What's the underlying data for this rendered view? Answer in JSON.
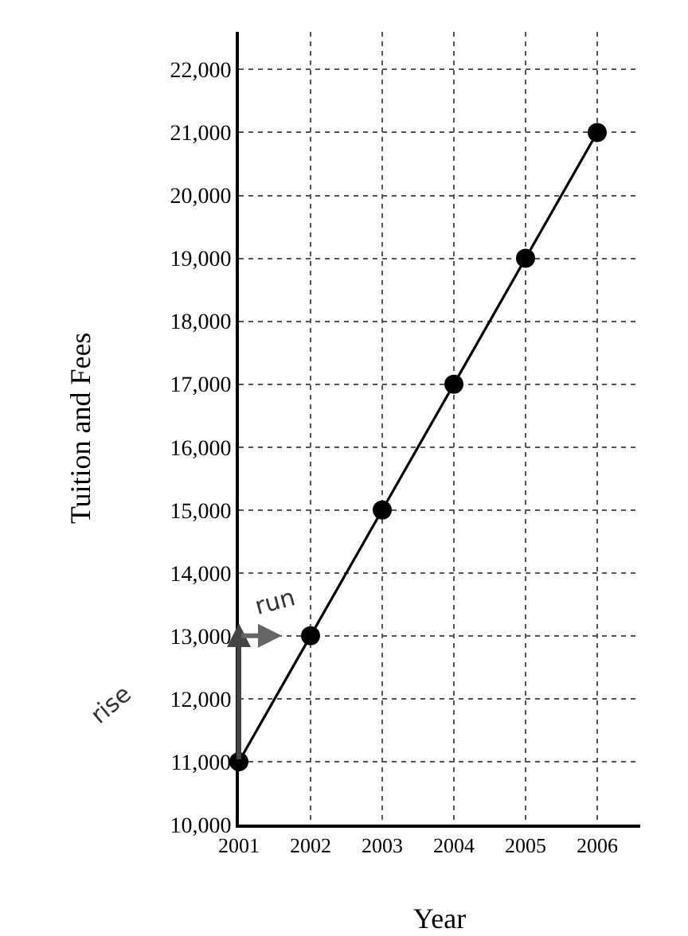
{
  "chart_data": {
    "type": "line",
    "xlabel": "Year",
    "ylabel": "Tuition and Fees",
    "x": [
      2001,
      2002,
      2003,
      2004,
      2005,
      2006
    ],
    "series": [
      {
        "color": "#000000",
        "values": [
          11000,
          13000,
          15000,
          17000,
          19000,
          21000
        ]
      }
    ],
    "xlim": [
      2001,
      2006.6
    ],
    "xticks": [
      2001,
      2002,
      2003,
      2004,
      2005,
      2006
    ],
    "ylim": [
      10000,
      22600
    ],
    "yticks": [
      {
        "value": 10000,
        "label": "10,000"
      },
      {
        "value": 11000,
        "label": "11,000"
      },
      {
        "value": 12000,
        "label": "12,000"
      },
      {
        "value": 13000,
        "label": "13,000"
      },
      {
        "value": 14000,
        "label": "14,000"
      },
      {
        "value": 15000,
        "label": "15,000"
      },
      {
        "value": 16000,
        "label": "16,000"
      },
      {
        "value": 17000,
        "label": "17,000"
      },
      {
        "value": 18000,
        "label": "18,000"
      },
      {
        "value": 19000,
        "label": "19,000"
      },
      {
        "value": 20000,
        "label": "20,000"
      },
      {
        "value": 21000,
        "label": "21,000"
      },
      {
        "value": 22000,
        "label": "22,000"
      }
    ],
    "grid": true,
    "marker": "circle",
    "line_style": "solid",
    "legend": false,
    "annotations": [
      "rise",
      "run"
    ]
  }
}
